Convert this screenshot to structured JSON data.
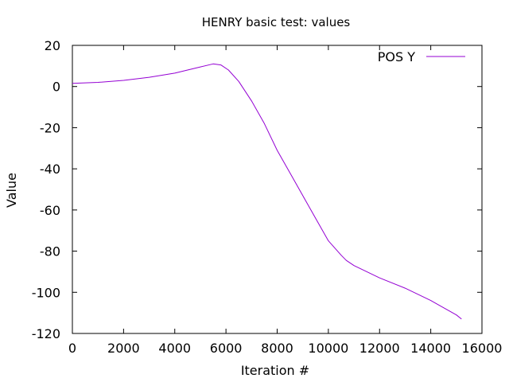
{
  "chart_data": {
    "type": "line",
    "title": "HENRY basic test: values",
    "xlabel": "Iteration #",
    "ylabel": "Value",
    "xlim": [
      0,
      16000
    ],
    "ylim": [
      -120,
      20
    ],
    "xticks": [
      0,
      2000,
      4000,
      6000,
      8000,
      10000,
      12000,
      14000,
      16000
    ],
    "yticks": [
      20,
      0,
      -20,
      -40,
      -60,
      -80,
      -100,
      -120
    ],
    "grid": false,
    "legend_position": "top-right",
    "series": [
      {
        "name": "POS Y",
        "color": "#9400d3",
        "x": [
          0,
          1000,
          2000,
          3000,
          4000,
          4500,
          5000,
          5500,
          5800,
          6100,
          6500,
          7000,
          7500,
          8000,
          8500,
          9000,
          9500,
          10000,
          10500,
          10700,
          11000,
          12000,
          13000,
          14000,
          15000,
          15200
        ],
        "y": [
          1.5,
          2,
          3,
          4.5,
          6.5,
          8,
          9.5,
          11,
          10.5,
          8,
          2.5,
          -7,
          -18,
          -31,
          -42,
          -53,
          -64,
          -75,
          -82,
          -84.5,
          -87,
          -93,
          -98,
          -104,
          -111,
          -113
        ]
      }
    ]
  }
}
